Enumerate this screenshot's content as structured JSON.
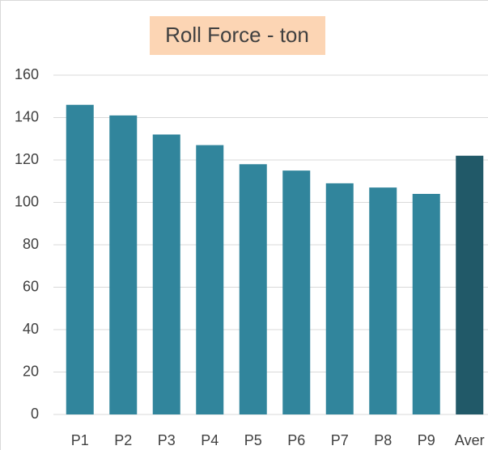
{
  "chart_data": {
    "type": "bar",
    "title": "Roll Force - ton",
    "categories": [
      "P1",
      "P2",
      "P3",
      "P4",
      "P5",
      "P6",
      "P7",
      "P8",
      "P9",
      "Aver"
    ],
    "values": [
      146,
      141,
      132,
      127,
      118,
      115,
      109,
      107,
      104,
      122
    ],
    "colors": [
      "#31859c",
      "#31859c",
      "#31859c",
      "#31859c",
      "#31859c",
      "#31859c",
      "#31859c",
      "#31859c",
      "#31859c",
      "#215968"
    ],
    "ylim": [
      0,
      160
    ],
    "yticks": [
      0,
      20,
      40,
      60,
      80,
      100,
      120,
      140,
      160
    ],
    "grid": true
  }
}
